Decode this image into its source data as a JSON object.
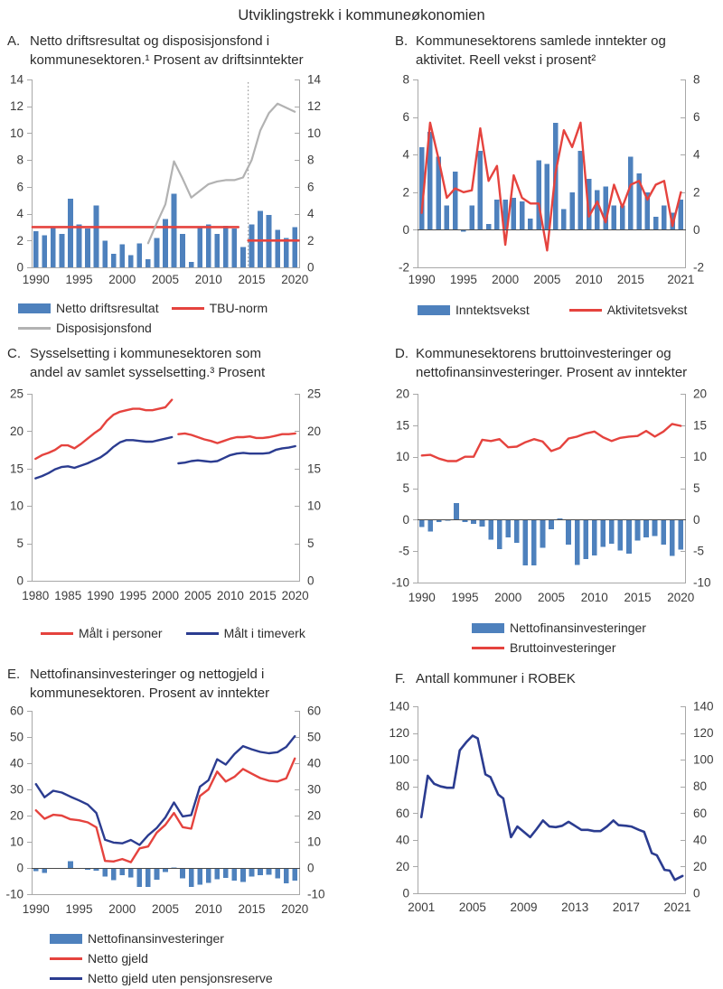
{
  "page_title": "Utviklingstrekk i kommuneøkonomien",
  "style": {
    "axis_color": "#a8a8a8",
    "zero_line_color": "#4a4a4a",
    "bar_blue": "#4e81bd",
    "red": "#e5433e",
    "gray": "#b2b2b2",
    "navy": "#2b3c90",
    "dotted_line_color": "#8c8c8c"
  },
  "chart_data": [
    {
      "id": "A",
      "letter": "A.",
      "title": "Netto driftsresultat og disposisjonsfond i\nkommunesektoren.¹ Prosent av driftsinntekter",
      "type": "bar",
      "ylim": [
        0,
        14
      ],
      "ystep": 2,
      "xlim": [
        1989.5,
        2020.5
      ],
      "xticks": [
        1990,
        1995,
        2000,
        2005,
        2010,
        2015,
        2020
      ],
      "vline": 2014.6,
      "series": [
        {
          "label": "Netto driftsresultat",
          "type": "bar",
          "color": "#4e81bd",
          "start": 1990,
          "values": [
            2.7,
            2.4,
            3.0,
            2.5,
            5.1,
            3.2,
            2.9,
            4.6,
            2.0,
            1.0,
            1.7,
            0.9,
            1.8,
            0.6,
            2.2,
            3.6,
            5.5,
            2.5,
            0.4,
            3.0,
            3.2,
            2.5,
            3.1,
            2.9,
            1.5,
            3.2,
            4.2,
            3.9,
            2.8,
            2.2,
            3.0
          ]
        },
        {
          "label": "TBU-norm",
          "type": "segments",
          "color": "#e5433e",
          "w": 2.6,
          "segments": [
            [
              [
                1989.6,
                3
              ],
              [
                2013.45,
                3
              ]
            ],
            [
              [
                2014.6,
                2
              ],
              [
                2020.45,
                2
              ]
            ]
          ]
        },
        {
          "label": "Disposisjonsfond",
          "type": "line",
          "color": "#b2b2b2",
          "w": 2.2,
          "start": 2003,
          "values": [
            1.8,
            3.3,
            4.7,
            7.9,
            6.6,
            5.2,
            5.7,
            6.2,
            6.4,
            6.5,
            6.5,
            6.7,
            8.0,
            10.2,
            11.5,
            12.2,
            11.9,
            11.6
          ]
        }
      ],
      "legend_rows": [
        [
          0,
          1
        ],
        [
          2
        ]
      ]
    },
    {
      "id": "B",
      "letter": "B.",
      "title": "Kommunesektorens samlede inntekter og\naktivitet. Reell vekst i prosent²",
      "type": "bar",
      "ylim": [
        -2,
        8
      ],
      "ystep": 2,
      "xlim": [
        1989.5,
        2021.5
      ],
      "xticks": [
        1990,
        1995,
        2000,
        2005,
        2010,
        2015,
        2021
      ],
      "series": [
        {
          "label": "Inntektsvekst",
          "type": "bar",
          "color": "#4e81bd",
          "start": 1990,
          "values": [
            4.4,
            5.2,
            3.9,
            1.3,
            3.1,
            -0.1,
            1.3,
            4.2,
            0.3,
            1.6,
            1.6,
            1.7,
            1.5,
            0.6,
            3.7,
            3.5,
            5.7,
            1.1,
            2.0,
            4.2,
            2.7,
            2.1,
            2.3,
            1.3,
            1.3,
            3.9,
            3.0,
            2.0,
            0.7,
            1.3,
            0.9,
            1.6
          ]
        },
        {
          "label": "Aktivitetsvekst",
          "type": "line",
          "color": "#e5433e",
          "w": 2.4,
          "start": 1990,
          "values": [
            0.9,
            5.7,
            3.8,
            1.7,
            2.2,
            2.0,
            2.1,
            5.4,
            2.6,
            3.4,
            -0.8,
            2.9,
            1.7,
            1.4,
            1.4,
            -1.1,
            3.0,
            5.3,
            4.4,
            5.7,
            0.7,
            1.5,
            0.4,
            2.4,
            1.2,
            2.4,
            2.6,
            1.6,
            2.4,
            2.6,
            0.2,
            2.0
          ]
        }
      ],
      "legend_rows": [
        [
          0,
          1
        ]
      ]
    },
    {
      "id": "C",
      "letter": "C.",
      "title": "Sysselsetting i kommunesektoren som\nandel av samlet sysselsetting.³  Prosent",
      "type": "line",
      "ylim": [
        0,
        25
      ],
      "ystep": 5,
      "xlim": [
        1979.4,
        2020.6
      ],
      "xticks": [
        1980,
        1985,
        1990,
        1995,
        2000,
        2005,
        2010,
        2015,
        2020
      ],
      "series": [
        {
          "label": "Målt i personer",
          "type": "line",
          "color": "#e5433e",
          "w": 2.4,
          "runs": [
            {
              "start": 1980,
              "values": [
                16.3,
                16.8,
                17.1,
                17.5,
                18.1,
                18.1,
                17.7,
                18.3,
                19.0,
                19.7,
                20.3,
                21.4,
                22.2,
                22.6,
                22.8,
                23.0,
                23.0,
                22.8,
                22.8,
                23.0,
                23.2,
                24.2
              ]
            },
            {
              "start": 2002,
              "values": [
                19.6,
                19.7,
                19.5,
                19.2,
                18.9,
                18.7,
                18.4,
                18.7,
                19.0,
                19.2,
                19.2,
                19.3,
                19.1,
                19.1,
                19.2,
                19.4,
                19.6,
                19.6,
                19.7
              ]
            }
          ]
        },
        {
          "label": "Målt i timeverk",
          "type": "line",
          "color": "#2b3c90",
          "w": 2.4,
          "runs": [
            {
              "start": 1980,
              "values": [
                13.7,
                14.0,
                14.4,
                14.9,
                15.2,
                15.3,
                15.1,
                15.4,
                15.7,
                16.1,
                16.5,
                17.1,
                17.9,
                18.5,
                18.8,
                18.8,
                18.7,
                18.6,
                18.6,
                18.8,
                19.0,
                19.2
              ]
            },
            {
              "start": 2002,
              "values": [
                15.7,
                15.8,
                16.0,
                16.1,
                16.0,
                15.9,
                16.0,
                16.4,
                16.8,
                17.0,
                17.1,
                17.0,
                17.0,
                17.0,
                17.1,
                17.5,
                17.7,
                17.8,
                18.0
              ]
            }
          ]
        }
      ],
      "legend_rows": [
        [
          0,
          1
        ]
      ]
    },
    {
      "id": "D",
      "letter": "D.",
      "title": "Kommunesektorens bruttoinvesteringer og\nnettofinansinvesteringer. Prosent av inntekter",
      "type": "bar",
      "ylim": [
        -10,
        20
      ],
      "ystep": 5,
      "xlim": [
        1989.5,
        2020.5
      ],
      "xticks": [
        1990,
        1995,
        2000,
        2005,
        2010,
        2015,
        2020
      ],
      "series": [
        {
          "label": "Nettofinansinvesteringer",
          "type": "bar",
          "color": "#4e81bd",
          "start": 1990,
          "values": [
            -1.2,
            -1.9,
            -0.4,
            -0.1,
            2.6,
            -0.4,
            -0.7,
            -1.1,
            -3.2,
            -4.7,
            -2.8,
            -3.7,
            -7.3,
            -7.3,
            -4.5,
            -1.5,
            0.2,
            -4.0,
            -7.2,
            -6.3,
            -5.7,
            -4.3,
            -3.8,
            -4.9,
            -5.4,
            -3.3,
            -2.8,
            -2.6,
            -4.0,
            -5.8,
            -4.8
          ]
        },
        {
          "label": "Bruttoinvesteringer",
          "type": "line",
          "color": "#e5433e",
          "w": 2.4,
          "start": 1990,
          "values": [
            10.2,
            10.3,
            9.7,
            9.3,
            9.3,
            10.0,
            10.0,
            12.7,
            12.5,
            12.8,
            11.5,
            11.6,
            12.3,
            12.8,
            12.4,
            10.9,
            11.4,
            12.9,
            13.2,
            13.7,
            14.0,
            13.1,
            12.5,
            13.0,
            13.2,
            13.3,
            14.1,
            13.2,
            14.0,
            15.2,
            14.9
          ]
        }
      ],
      "legend_rows": [
        [
          0
        ],
        [
          1
        ]
      ]
    },
    {
      "id": "E",
      "letter": "E.",
      "title": "Nettofinansinvesteringer og nettogjeld i\nkommunesektoren. Prosent av inntekter",
      "type": "bar",
      "ylim": [
        -10,
        60
      ],
      "ystep": 10,
      "xlim": [
        1989.5,
        2020.5
      ],
      "xticks": [
        1990,
        1995,
        2000,
        2005,
        2010,
        2015,
        2020
      ],
      "series": [
        {
          "label": "Nettofinansinvesteringer",
          "type": "bar",
          "color": "#4e81bd",
          "start": 1990,
          "values": [
            -1.2,
            -1.9,
            -0.4,
            -0.1,
            2.6,
            -0.4,
            -0.7,
            -1.1,
            -3.2,
            -4.7,
            -2.8,
            -3.7,
            -7.3,
            -7.3,
            -4.5,
            -1.5,
            0.2,
            -4.0,
            -7.2,
            -6.3,
            -5.7,
            -4.3,
            -3.8,
            -4.9,
            -5.4,
            -3.3,
            -2.8,
            -2.6,
            -4.0,
            -5.8,
            -4.8
          ]
        },
        {
          "label": "Netto gjeld",
          "type": "line",
          "color": "#e5433e",
          "w": 2.4,
          "start": 1990,
          "values": [
            22.0,
            18.8,
            20.3,
            20.0,
            18.6,
            18.2,
            17.4,
            15.5,
            2.7,
            2.5,
            3.4,
            2.2,
            7.5,
            8.2,
            13.5,
            16.5,
            21.0,
            15.6,
            15.0,
            27.5,
            30.0,
            36.8,
            33.0,
            34.8,
            37.8,
            36.0,
            34.3,
            33.3,
            33.0,
            34.2,
            41.8
          ]
        },
        {
          "label": "Netto gjeld uten pensjonsreserve",
          "type": "line",
          "color": "#2b3c90",
          "w": 2.4,
          "start": 1990,
          "values": [
            32.0,
            27.0,
            29.5,
            28.8,
            27.2,
            25.8,
            24.2,
            21.0,
            10.8,
            9.7,
            9.4,
            10.7,
            8.8,
            12.5,
            15.3,
            19.3,
            25.0,
            19.7,
            20.2,
            31.0,
            33.5,
            41.5,
            39.5,
            43.5,
            46.5,
            45.3,
            44.3,
            43.8,
            44.2,
            46.2,
            50.3
          ]
        }
      ],
      "legend_rows": [
        [
          0
        ],
        [
          1
        ],
        [
          2
        ]
      ]
    },
    {
      "id": "F",
      "letter": "F.",
      "title": "Antall kommuner i ROBEK",
      "type": "line",
      "ylim": [
        0,
        140
      ],
      "ystep": 20,
      "xlim": [
        2000.7,
        2021.6
      ],
      "xticks": [
        2001,
        2005,
        2009,
        2013,
        2017,
        2021
      ],
      "series": [
        {
          "label": "Antall kommuner i ROBEK",
          "type": "line",
          "color": "#2b3c90",
          "w": 2.6,
          "points": [
            [
              2001,
              57
            ],
            [
              2001.5,
              88
            ],
            [
              2002,
              82
            ],
            [
              2002.5,
              80
            ],
            [
              2003,
              79
            ],
            [
              2003.5,
              79
            ],
            [
              2004,
              107
            ],
            [
              2004.5,
              113
            ],
            [
              2005,
              118
            ],
            [
              2005.4,
              116
            ],
            [
              2006,
              89
            ],
            [
              2006.4,
              87
            ],
            [
              2007,
              74
            ],
            [
              2007.4,
              71
            ],
            [
              2008,
              42
            ],
            [
              2008.5,
              50
            ],
            [
              2009,
              46
            ],
            [
              2009.5,
              42
            ],
            [
              2010,
              48
            ],
            [
              2010.5,
              54.5
            ],
            [
              2011,
              50
            ],
            [
              2011.5,
              49.5
            ],
            [
              2012,
              50.5
            ],
            [
              2012.5,
              53.5
            ],
            [
              2013,
              50.5
            ],
            [
              2013.5,
              47.5
            ],
            [
              2014,
              47.5
            ],
            [
              2014.5,
              46.5
            ],
            [
              2015,
              46.5
            ],
            [
              2015.5,
              50
            ],
            [
              2016,
              54.5
            ],
            [
              2016.4,
              51
            ],
            [
              2017,
              50.5
            ],
            [
              2017.4,
              50
            ],
            [
              2018,
              47.5
            ],
            [
              2018.4,
              46
            ],
            [
              2019,
              30
            ],
            [
              2019.4,
              28.5
            ],
            [
              2020,
              17.5
            ],
            [
              2020.4,
              17
            ],
            [
              2020.8,
              10
            ],
            [
              2021,
              11
            ],
            [
              2021.4,
              13
            ]
          ]
        }
      ]
    }
  ]
}
